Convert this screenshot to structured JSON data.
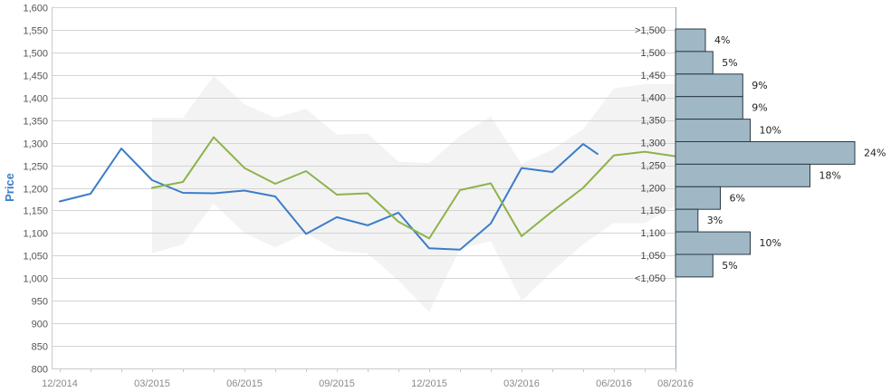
{
  "chart_data": {
    "type": "line",
    "ylabel": "Price",
    "ylim": [
      800,
      1600
    ],
    "yticks": [
      800,
      850,
      900,
      950,
      1000,
      1050,
      1100,
      1150,
      1200,
      1250,
      1300,
      1350,
      1400,
      1450,
      1500,
      1550,
      1600
    ],
    "ytick_labels": [
      "800",
      "850",
      "900",
      "950",
      "1,000",
      "1,050",
      "1,100",
      "1,150",
      "1,200",
      "1,250",
      "1,300",
      "1,350",
      "1,400",
      "1,450",
      "1,500",
      "1,550",
      "1,600"
    ],
    "xlim": [
      "2014-12",
      "2016-08"
    ],
    "xticks": [
      "2014-12",
      "2015-03",
      "2015-06",
      "2015-09",
      "2015-12",
      "2016-03",
      "2016-06",
      "2016-08"
    ],
    "xtick_labels": [
      "12/2014",
      "03/2015",
      "06/2015",
      "09/2015",
      "12/2015",
      "03/2016",
      "06/2016",
      "08/2016"
    ],
    "grid": true,
    "series": [
      {
        "color": "#3b7dc9",
        "style": "line",
        "x": [
          "2014-12",
          "2015-01",
          "2015-02",
          "2015-03",
          "2015-04",
          "2015-05",
          "2015-06",
          "2015-07",
          "2015-08",
          "2015-09",
          "2015-10",
          "2015-11",
          "2015-12",
          "2016-01",
          "2016-02",
          "2016-03",
          "2016-04",
          "2016-05",
          "2016-05-15"
        ],
        "values": [
          1170,
          1187,
          1287,
          1217,
          1189,
          1188,
          1194,
          1181,
          1098,
          1135,
          1117,
          1145,
          1066,
          1063,
          1121,
          1244,
          1235,
          1297,
          1275
        ]
      },
      {
        "color": "#8db34a",
        "style": "line",
        "x": [
          "2015-03",
          "2015-04",
          "2015-05",
          "2015-06",
          "2015-07",
          "2015-08",
          "2015-09",
          "2015-10",
          "2015-11",
          "2015-12",
          "2016-01",
          "2016-02",
          "2016-03",
          "2016-04",
          "2016-05",
          "2016-06",
          "2016-07",
          "2016-08"
        ],
        "values": [
          1200,
          1213,
          1312,
          1244,
          1209,
          1237,
          1185,
          1188,
          1125,
          1088,
          1195,
          1210,
          1093,
          1148,
          1200,
          1272,
          1280,
          1270
        ]
      },
      {
        "color": "#f3f3f3",
        "style": "band",
        "x": [
          "2015-03",
          "2015-04",
          "2015-05",
          "2015-06",
          "2015-07",
          "2015-08",
          "2015-09",
          "2015-10",
          "2015-11",
          "2015-12",
          "2016-01",
          "2016-02",
          "2016-03",
          "2016-04",
          "2016-05",
          "2016-06",
          "2016-07",
          "2016-08"
        ],
        "upper": [
          1355,
          1355,
          1448,
          1385,
          1355,
          1375,
          1318,
          1320,
          1258,
          1255,
          1315,
          1358,
          1253,
          1285,
          1330,
          1420,
          1430,
          1430
        ],
        "lower": [
          1055,
          1075,
          1165,
          1100,
          1068,
          1100,
          1060,
          1055,
          995,
          925,
          1065,
          1082,
          950,
          1015,
          1075,
          1122,
          1122,
          1160
        ]
      }
    ],
    "distribution": {
      "type": "bar",
      "color": "#a0b8c6",
      "bins": [
        {
          "label": ">1,500",
          "pct_label": "4%",
          "value": 4
        },
        {
          "label": "1,500",
          "pct_label": "5%",
          "value": 5
        },
        {
          "label": "1,450",
          "pct_label": "9%",
          "value": 9
        },
        {
          "label": "1,400",
          "pct_label": "9%",
          "value": 9
        },
        {
          "label": "1,350",
          "pct_label": "10%",
          "value": 10
        },
        {
          "label": "1,300",
          "pct_label": "24%",
          "value": 24
        },
        {
          "label": "1,250",
          "pct_label": "18%",
          "value": 18
        },
        {
          "label": "1,200",
          "pct_label": "6%",
          "value": 6
        },
        {
          "label": "1,150",
          "pct_label": "3%",
          "value": 3
        },
        {
          "label": "1,100",
          "pct_label": "10%",
          "value": 10
        },
        {
          "label": "1,050",
          "pct_label": "5%",
          "value": 5
        },
        {
          "label": "<1,050",
          "pct_label": "",
          "value": 0
        }
      ]
    }
  }
}
